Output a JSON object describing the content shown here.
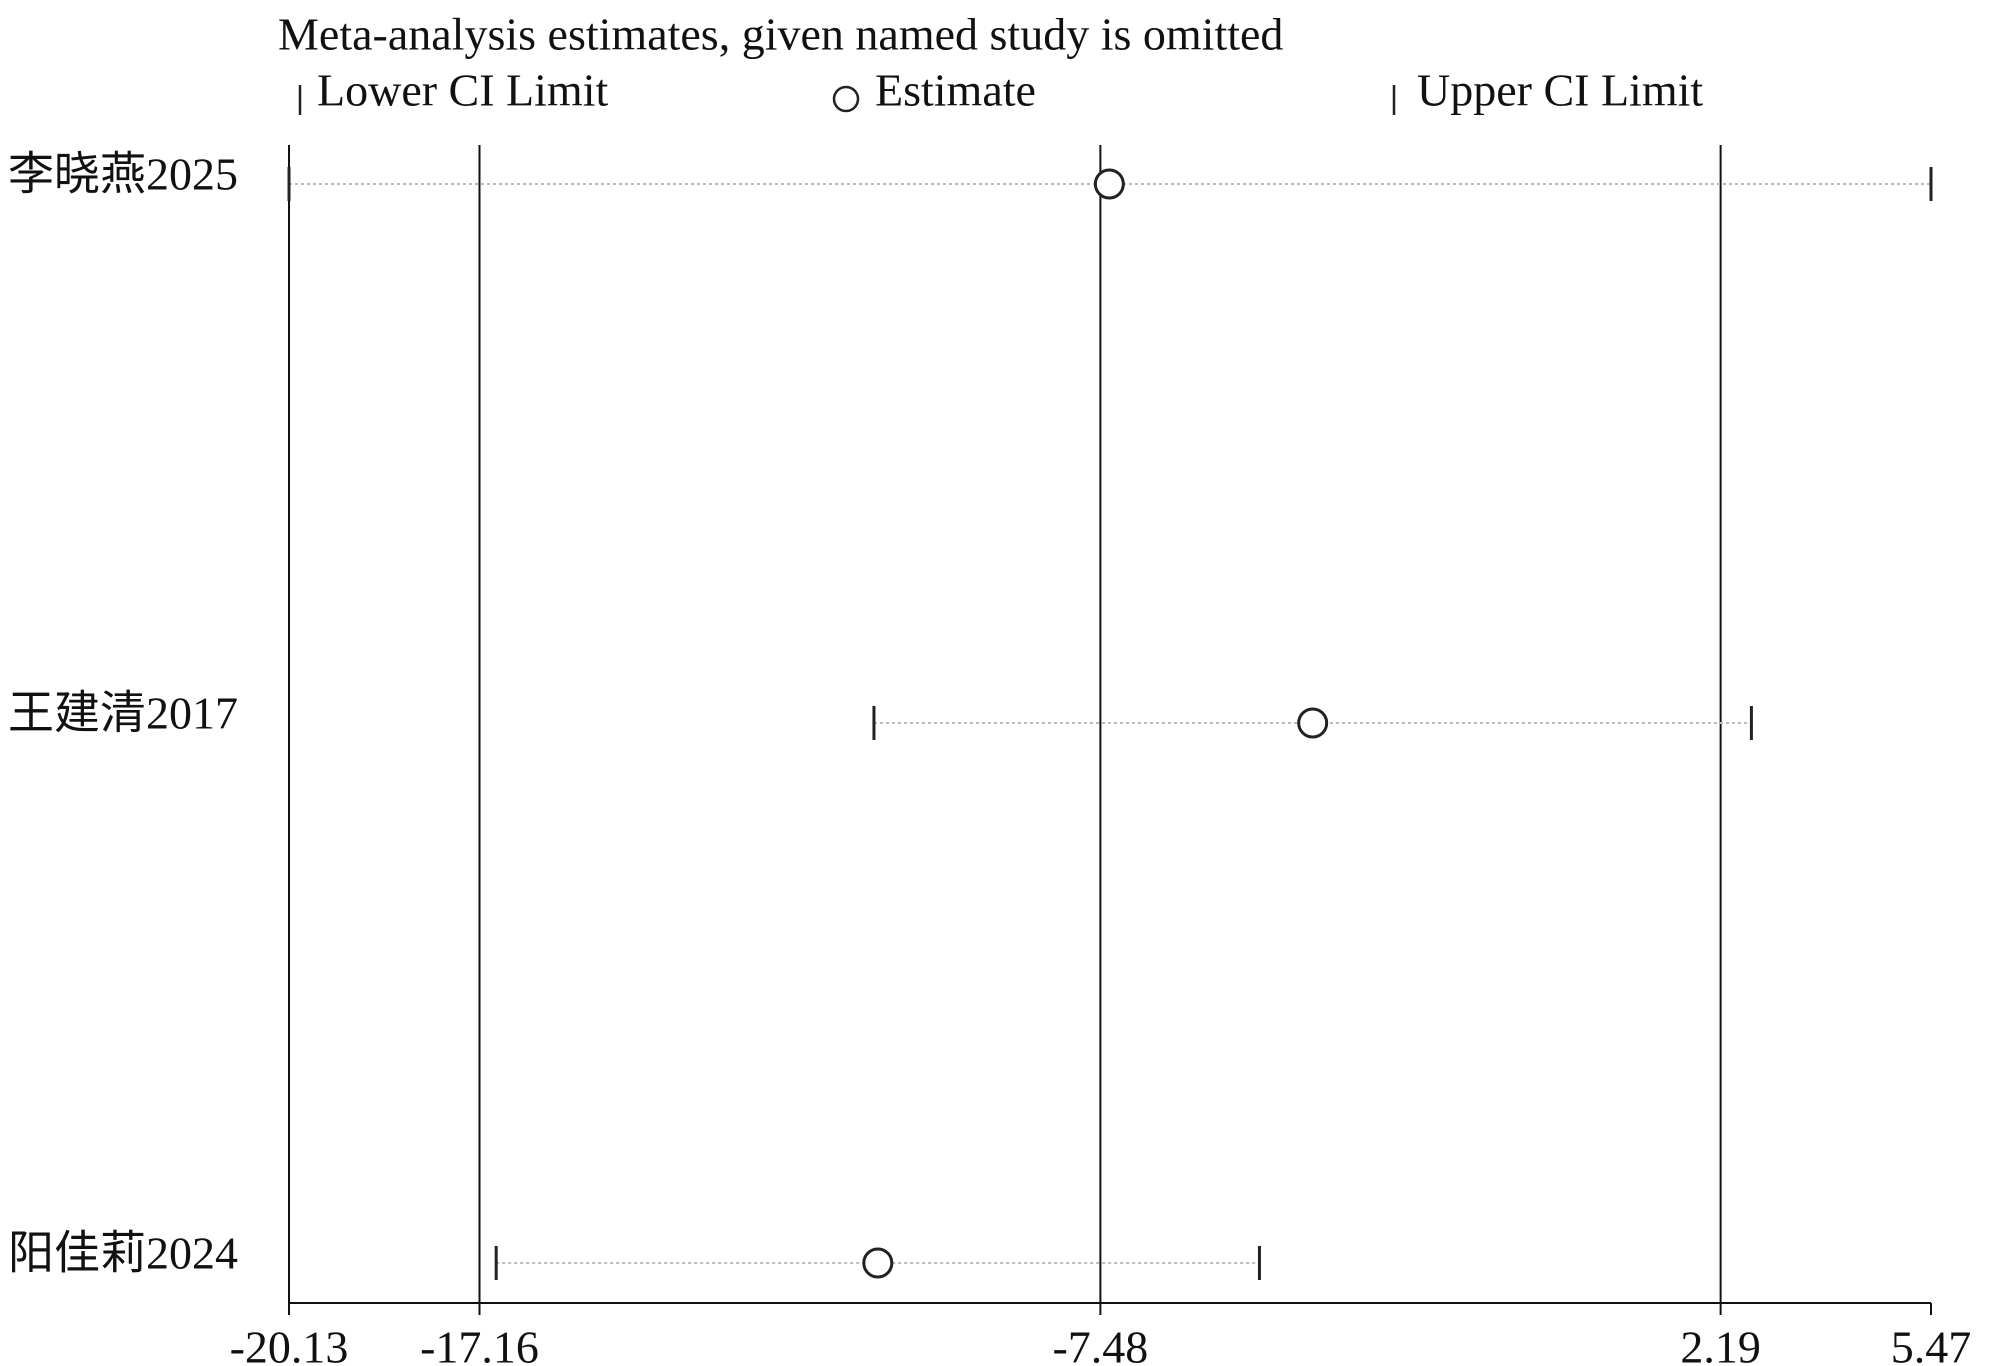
{
  "chart_data": {
    "type": "forest",
    "title": "Meta-analysis estimates, given named study is omitted",
    "categories": [
      "李晓燕2025",
      "王建清2017",
      "阳佳莉2024"
    ],
    "series": [
      {
        "name": "Lower CI Limit",
        "color": "#222222",
        "values": [
          -20.13,
          -11.01,
          -16.9
        ]
      },
      {
        "name": "Estimate",
        "color": "#222222",
        "values": [
          -7.34,
          -4.17,
          -10.95
        ]
      },
      {
        "name": "Upper CI Limit",
        "color": "#222222",
        "values": [
          5.47,
          2.67,
          -5.0
        ]
      }
    ],
    "xlim": [
      -20.13,
      5.47
    ],
    "xticks": [
      -20.13,
      -17.16,
      -7.48,
      2.19,
      5.47
    ],
    "grid": true
  }
}
